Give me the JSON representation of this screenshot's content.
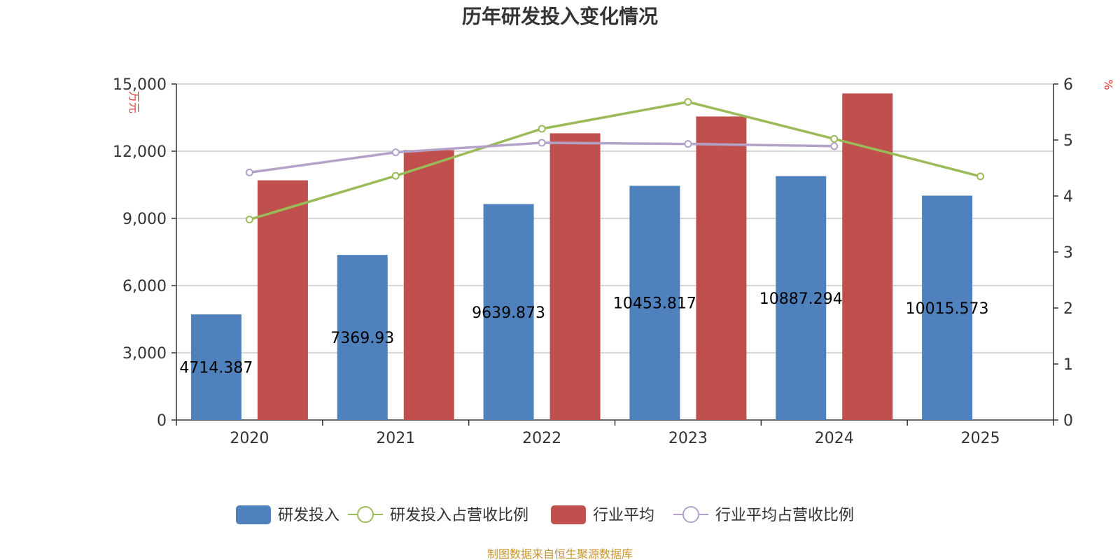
{
  "chart_data": {
    "type": "bar",
    "title": "历年研发投入变化情况",
    "categories": [
      "2020",
      "2021",
      "2022",
      "2023",
      "2024",
      "2025"
    ],
    "y_left": {
      "unit_label": "万元",
      "ylim": [
        0,
        15000
      ],
      "ticks": [
        0,
        3000,
        6000,
        9000,
        12000,
        15000
      ],
      "tick_labels": [
        "0",
        "3,000",
        "6,000",
        "9,000",
        "12,000",
        "15,000"
      ]
    },
    "y_right": {
      "unit_label": "%",
      "ylim": [
        0,
        6
      ],
      "ticks": [
        0,
        1,
        2,
        3,
        4,
        5,
        6
      ],
      "tick_labels": [
        "0",
        "1",
        "2",
        "3",
        "4",
        "5",
        "6"
      ]
    },
    "grid": true,
    "legend_position": "bottom",
    "series": [
      {
        "name": "研发投入",
        "kind": "bar",
        "axis": "left",
        "color": "#4f81bd",
        "values": [
          4714.387,
          7369.93,
          9639.873,
          10453.817,
          10887.294,
          10015.573
        ],
        "labels": [
          "4714.387",
          "7369.93",
          "9639.873",
          "10453.817",
          "10887.294",
          "10015.573"
        ]
      },
      {
        "name": "研发投入占营收比例",
        "kind": "line",
        "axis": "right",
        "color": "#9bbb59",
        "values": [
          3.58,
          4.36,
          5.2,
          5.68,
          5.02,
          4.35
        ]
      },
      {
        "name": "行业平均",
        "kind": "bar",
        "axis": "left",
        "color": "#c0504d",
        "values": [
          10700,
          12050,
          12800,
          13550,
          14580,
          null
        ]
      },
      {
        "name": "行业平均占营收比例",
        "kind": "line",
        "axis": "right",
        "color": "#b3a2c7",
        "values": [
          4.42,
          4.78,
          4.95,
          4.93,
          4.89,
          null
        ]
      }
    ],
    "source": "制图数据来自恒生聚源数据库"
  }
}
